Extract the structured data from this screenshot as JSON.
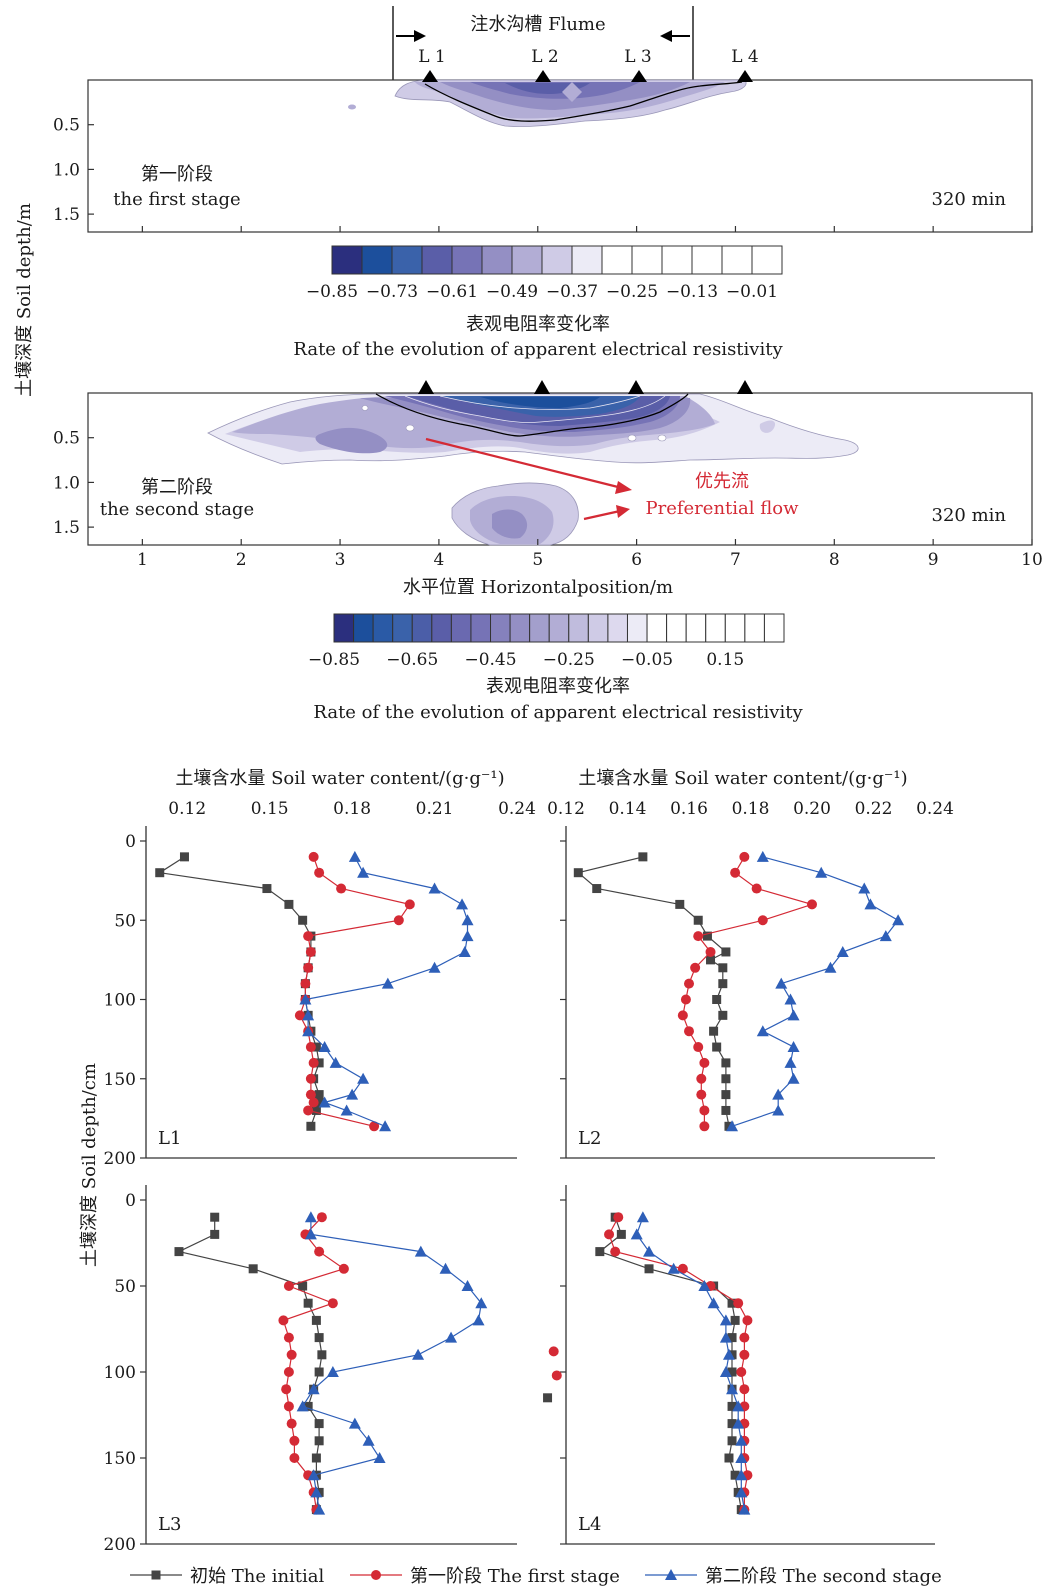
{
  "chart_data": [
    {
      "type": "heatmap",
      "panel": "first-stage",
      "flume_label": "注水沟槽 Flume",
      "electrode_labels": [
        "L 1",
        "L 2",
        "L 3",
        "L 4"
      ],
      "electrode_x": [
        3.9,
        5.05,
        6.05,
        7.1
      ],
      "flume_x": [
        3.1,
        6.15
      ],
      "ylabel": "土壤深度 Soil depth/m",
      "ylim": [
        0.0,
        1.7
      ],
      "y_ticks": [
        0.5,
        1.0,
        1.5
      ],
      "y_tick_labels": [
        "0.5",
        "1.0",
        "1.5"
      ],
      "xlim": [
        0.45,
        10.0
      ],
      "x_ticks": [
        1,
        2,
        3,
        4,
        5,
        6,
        7,
        8,
        9,
        10
      ],
      "stage_label_cn": "第一阶段",
      "stage_label_en": "the first stage",
      "time_label": "320 min",
      "colorbar": {
        "colors": [
          "#2b2f7e",
          "#1c4f9c",
          "#3a62aa",
          "#5a5ea8",
          "#7673b6",
          "#948fc4",
          "#b2add5",
          "#cfcbe6",
          "#ecebf6",
          "#ffffff",
          "#ffffff",
          "#ffffff",
          "#ffffff",
          "#ffffff",
          "#ffffff"
        ],
        "tick_values": [
          "−0.85",
          "−0.73",
          "−0.61",
          "−0.49",
          "−0.37",
          "−0.25",
          "−0.13",
          "−0.01"
        ],
        "title_cn": "表观电阻率变化率",
        "title_en": "Rate of the evolution of apparent electrical resistivity"
      }
    },
    {
      "type": "heatmap",
      "panel": "second-stage",
      "electrode_x": [
        3.9,
        5.05,
        6.05,
        7.1
      ],
      "ylim": [
        0.0,
        1.7
      ],
      "y_ticks": [
        0.5,
        1.0,
        1.5
      ],
      "y_tick_labels": [
        "0.5",
        "1.0",
        "1.5"
      ],
      "xlim": [
        0.45,
        10.0
      ],
      "x_ticks": [
        1,
        2,
        3,
        4,
        5,
        6,
        7,
        8,
        9,
        10
      ],
      "x_tick_labels": [
        "1",
        "2",
        "3",
        "4",
        "5",
        "6",
        "7",
        "8",
        "9",
        "10"
      ],
      "xlabel": "水平位置 Horizontalposition/m",
      "stage_label_cn": "第二阶段",
      "stage_label_en": "the second stage",
      "time_label": "320 min",
      "annotation_cn": "优先流",
      "annotation_en": "Preferential flow",
      "annotation_color": "#d42a35",
      "colorbar": {
        "colors": [
          "#2b2f7e",
          "#1c4f9c",
          "#2a5aa6",
          "#3a62aa",
          "#4b5ea8",
          "#5a5ea8",
          "#6a69b0",
          "#7673b6",
          "#8581bd",
          "#948fc4",
          "#a39fcc",
          "#b2add5",
          "#c0bcdd",
          "#cfcbe6",
          "#ddd9ee",
          "#ecebf6",
          "#ffffff",
          "#ffffff",
          "#ffffff",
          "#ffffff",
          "#ffffff",
          "#ffffff",
          "#ffffff"
        ],
        "tick_values": [
          "−0.85",
          "−0.65",
          "−0.45",
          "−0.25",
          "−0.05",
          "0.15"
        ],
        "title_cn": "表观电阻率变化率",
        "title_en": "Rate of the evolution of apparent electrical resistivity"
      }
    },
    {
      "type": "line",
      "panel": "L1",
      "xlabel": "土壤含水量 Soil water content/(g·g⁻¹)",
      "xlim": [
        0.105,
        0.24
      ],
      "x_ticks": [
        0.12,
        0.15,
        0.18,
        0.21,
        0.24
      ],
      "x_tick_labels": [
        "0.12",
        "0.15",
        "0.18",
        "0.21",
        "0.24"
      ],
      "ylim": [
        0,
        200
      ],
      "y_ticks": [
        0,
        50,
        100,
        150,
        200
      ],
      "y_tick_labels": [
        "0",
        "50",
        "100",
        "150",
        "200"
      ],
      "ylabel": "土壤深度 Soil depth/cm",
      "label": "L1",
      "series": [
        {
          "name": "初始 The initial",
          "depth": [
            10,
            20,
            30,
            40,
            50,
            60,
            70,
            80,
            90,
            100,
            110,
            120,
            130,
            140,
            150,
            160,
            165,
            170,
            180
          ],
          "values": [
            0.119,
            0.11,
            0.149,
            0.157,
            0.162,
            0.165,
            0.165,
            0.164,
            0.163,
            0.163,
            0.164,
            0.165,
            0.167,
            0.168,
            0.166,
            0.168,
            0.168,
            0.167,
            0.165
          ]
        },
        {
          "name": "第一阶段 The first stage",
          "depth": [
            10,
            20,
            30,
            40,
            50,
            60,
            70,
            80,
            90,
            100,
            110,
            120,
            130,
            140,
            150,
            160,
            165,
            170,
            180
          ],
          "values": [
            0.166,
            0.168,
            0.176,
            0.201,
            0.197,
            0.164,
            0.165,
            0.164,
            0.163,
            0.163,
            0.161,
            0.164,
            0.165,
            0.166,
            0.165,
            0.165,
            0.166,
            0.164,
            0.188
          ]
        },
        {
          "name": "第二阶段 The second stage",
          "depth": [
            10,
            20,
            30,
            40,
            50,
            60,
            70,
            80,
            90,
            100,
            110,
            120,
            130,
            140,
            150,
            160,
            165,
            170,
            180
          ],
          "values": [
            0.181,
            0.184,
            0.21,
            0.22,
            0.222,
            0.222,
            0.221,
            0.21,
            0.193,
            0.163,
            0.164,
            0.164,
            0.17,
            0.174,
            0.184,
            0.18,
            0.17,
            0.178,
            0.192
          ]
        }
      ]
    },
    {
      "type": "line",
      "panel": "L2",
      "xlabel": "土壤含水量 Soil water content/(g·g⁻¹)",
      "xlim": [
        0.12,
        0.24
      ],
      "x_ticks": [
        0.12,
        0.14,
        0.16,
        0.18,
        0.2,
        0.22,
        0.24
      ],
      "x_tick_labels": [
        "0.12",
        "0.14",
        "0.16",
        "0.18",
        "0.20",
        "0.22",
        "0.24"
      ],
      "ylim": [
        0,
        200
      ],
      "y_ticks": [
        0,
        50,
        100,
        150,
        200
      ],
      "label": "L2",
      "series": [
        {
          "name": "初始 The initial",
          "depth": [
            10,
            20,
            30,
            40,
            50,
            60,
            70,
            75,
            80,
            90,
            100,
            110,
            120,
            130,
            140,
            150,
            160,
            170,
            180
          ],
          "values": [
            0.145,
            0.124,
            0.13,
            0.157,
            0.163,
            0.166,
            0.172,
            0.167,
            0.171,
            0.171,
            0.169,
            0.171,
            0.168,
            0.169,
            0.172,
            0.172,
            0.172,
            0.172,
            0.173
          ]
        },
        {
          "name": "第一阶段 The first stage",
          "depth": [
            10,
            20,
            30,
            40,
            50,
            60,
            70,
            80,
            90,
            100,
            110,
            120,
            130,
            140,
            150,
            160,
            170,
            180
          ],
          "values": [
            0.178,
            0.175,
            0.182,
            0.2,
            0.184,
            0.163,
            0.167,
            0.162,
            0.16,
            0.159,
            0.158,
            0.16,
            0.163,
            0.165,
            0.164,
            0.164,
            0.165,
            0.165
          ]
        },
        {
          "name": "第二阶段 The second stage",
          "depth": [
            10,
            20,
            30,
            40,
            50,
            60,
            70,
            80,
            90,
            100,
            110,
            120,
            130,
            140,
            150,
            160,
            170,
            180
          ],
          "values": [
            0.184,
            0.203,
            0.217,
            0.219,
            0.228,
            0.224,
            0.21,
            0.206,
            0.19,
            0.193,
            0.194,
            0.184,
            0.194,
            0.193,
            0.194,
            0.189,
            0.189,
            0.174
          ]
        }
      ]
    },
    {
      "type": "line",
      "panel": "L3",
      "xlim": [
        0.105,
        0.24
      ],
      "ylim": [
        0,
        200
      ],
      "y_ticks": [
        0,
        50,
        100,
        150,
        200
      ],
      "y_tick_labels": [
        "0",
        "50",
        "100",
        "150",
        "200"
      ],
      "label": "L3",
      "series": [
        {
          "name": "初始 The initial",
          "depth": [
            10,
            20,
            30,
            40,
            50,
            60,
            70,
            80,
            90,
            100,
            110,
            120,
            130,
            140,
            150,
            160,
            170,
            180
          ],
          "values": [
            0.13,
            0.13,
            0.117,
            0.144,
            0.162,
            0.164,
            0.167,
            0.168,
            0.169,
            0.168,
            0.166,
            0.164,
            0.168,
            0.168,
            0.167,
            0.167,
            0.168,
            0.167
          ]
        },
        {
          "name": "第一阶段 The first stage",
          "depth": [
            10,
            20,
            30,
            40,
            50,
            60,
            70,
            80,
            90,
            100,
            110,
            120,
            130,
            140,
            150,
            160,
            170,
            180
          ],
          "values": [
            0.169,
            0.163,
            0.168,
            0.177,
            0.157,
            0.173,
            0.155,
            0.157,
            0.158,
            0.157,
            0.156,
            0.157,
            0.158,
            0.159,
            0.159,
            0.164,
            0.166,
            0.167
          ]
        },
        {
          "name": "第二阶段 The second stage",
          "depth": [
            10,
            20,
            30,
            40,
            50,
            60,
            70,
            80,
            90,
            100,
            110,
            120,
            130,
            140,
            150,
            160,
            170,
            180
          ],
          "values": [
            0.165,
            0.165,
            0.205,
            0.214,
            0.222,
            0.227,
            0.226,
            0.216,
            0.204,
            0.173,
            0.166,
            0.162,
            0.181,
            0.186,
            0.19,
            0.166,
            0.167,
            0.168
          ]
        }
      ]
    },
    {
      "type": "line",
      "panel": "L4",
      "xlim": [
        0.12,
        0.24
      ],
      "ylim": [
        0,
        200
      ],
      "y_ticks": [
        0,
        50,
        100,
        150,
        200
      ],
      "label": "L4",
      "outliers": [
        {
          "series": "第一阶段 The first stage",
          "depth": 88,
          "value": 0.116
        },
        {
          "series": "第一阶段 The first stage",
          "depth": 102,
          "value": 0.117
        },
        {
          "series": "初始 The initial",
          "depth": 115,
          "value": 0.114
        }
      ],
      "series": [
        {
          "name": "初始 The initial",
          "depth": [
            10,
            20,
            30,
            40,
            50,
            60,
            70,
            80,
            90,
            100,
            110,
            120,
            130,
            140,
            150,
            160,
            170,
            180
          ],
          "values": [
            0.136,
            0.138,
            0.131,
            0.147,
            0.168,
            0.174,
            0.175,
            0.174,
            0.174,
            0.174,
            0.174,
            0.174,
            0.174,
            0.174,
            0.173,
            0.175,
            0.176,
            0.177
          ]
        },
        {
          "name": "第一阶段 The first stage",
          "depth": [
            10,
            20,
            30,
            40,
            50,
            60,
            70,
            80,
            90,
            100,
            110,
            120,
            130,
            140,
            150,
            160,
            170,
            180
          ],
          "values": [
            0.137,
            0.134,
            0.136,
            0.158,
            0.167,
            0.176,
            0.179,
            0.178,
            0.178,
            0.177,
            0.178,
            0.178,
            0.178,
            0.178,
            0.178,
            0.179,
            0.178,
            0.178
          ]
        },
        {
          "name": "第二阶段 The second stage",
          "depth": [
            10,
            20,
            30,
            40,
            50,
            60,
            70,
            80,
            90,
            100,
            110,
            120,
            130,
            140,
            150,
            160,
            170,
            180
          ],
          "values": [
            0.145,
            0.143,
            0.147,
            0.155,
            0.165,
            0.168,
            0.172,
            0.172,
            0.173,
            0.172,
            0.174,
            0.176,
            0.176,
            0.177,
            0.177,
            0.177,
            0.177,
            0.178
          ]
        }
      ]
    }
  ],
  "legend": {
    "placement": "bottom",
    "items": [
      {
        "label": "初始 The initial",
        "color": "#444444",
        "marker": "square"
      },
      {
        "label": "第一阶段 The first stage",
        "color": "#d42a35",
        "marker": "circle"
      },
      {
        "label": "第二阶段 The second stage",
        "color": "#2e5fb8",
        "marker": "triangle"
      }
    ]
  },
  "colors": {
    "initial": "#444444",
    "first_stage": "#d42a35",
    "second_stage": "#2e5fb8"
  }
}
